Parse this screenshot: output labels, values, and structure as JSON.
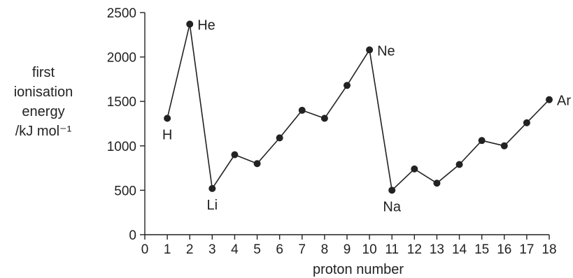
{
  "chart_data": {
    "type": "line",
    "title": "",
    "xlabel": "proton number",
    "ylabel_lines": [
      "first",
      "ionisation",
      "energy",
      "/kJ mol⁻¹"
    ],
    "xlim": [
      0,
      18
    ],
    "ylim": [
      0,
      2500
    ],
    "x_ticks": [
      0,
      1,
      2,
      3,
      4,
      5,
      6,
      7,
      8,
      9,
      10,
      11,
      12,
      13,
      14,
      15,
      16,
      17,
      18
    ],
    "y_ticks": [
      0,
      500,
      1000,
      1500,
      2000,
      2500
    ],
    "grid": false,
    "x": [
      1,
      2,
      3,
      4,
      5,
      6,
      7,
      8,
      9,
      10,
      11,
      12,
      13,
      14,
      15,
      16,
      17,
      18
    ],
    "series": [
      {
        "values": [
          1310,
          2370,
          520,
          900,
          800,
          1090,
          1400,
          1310,
          1680,
          2080,
          500,
          740,
          580,
          790,
          1060,
          1000,
          1260,
          1520
        ],
        "color": "#222222"
      }
    ],
    "point_labels": [
      {
        "x": 1,
        "text": "H",
        "position": "below"
      },
      {
        "x": 2,
        "text": "He",
        "position": "right"
      },
      {
        "x": 3,
        "text": "Li",
        "position": "below"
      },
      {
        "x": 10,
        "text": "Ne",
        "position": "right"
      },
      {
        "x": 11,
        "text": "Na",
        "position": "below"
      },
      {
        "x": 18,
        "text": "Ar",
        "position": "right"
      }
    ]
  }
}
